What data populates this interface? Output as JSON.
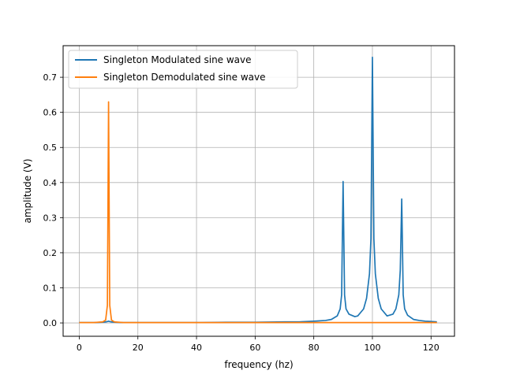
{
  "chart_data": {
    "type": "line",
    "title": "",
    "xlabel": "frequency (hz)",
    "ylabel": "amplitude (V)",
    "xlim": [
      -5.5,
      128
    ],
    "ylim": [
      -0.038,
      0.79
    ],
    "xticks": [
      0,
      20,
      40,
      60,
      80,
      100,
      120
    ],
    "yticks": [
      0.0,
      0.1,
      0.2,
      0.3,
      0.4,
      0.5,
      0.6,
      0.7
    ],
    "grid": true,
    "legend_position": "upper-left",
    "series": [
      {
        "name": "Singleton Modulated sine wave",
        "color": "#1f77b4",
        "x": [
          0,
          5,
          8,
          9,
          9.6,
          10,
          10.4,
          11,
          12,
          15,
          20,
          30,
          40,
          50,
          60,
          70,
          75,
          80,
          84,
          86,
          88,
          89,
          89.5,
          90,
          90.5,
          91,
          92,
          94,
          95,
          97,
          98,
          99,
          99.5,
          100,
          100.5,
          101,
          102,
          103,
          105,
          107,
          108,
          109,
          109.5,
          110,
          110.5,
          111,
          112,
          114,
          116,
          118,
          120,
          122
        ],
        "y": [
          0.001,
          0.001,
          0.002,
          0.003,
          0.004,
          0.005,
          0.004,
          0.003,
          0.002,
          0.001,
          0.001,
          0.001,
          0.001,
          0.002,
          0.002,
          0.003,
          0.003,
          0.005,
          0.007,
          0.01,
          0.02,
          0.04,
          0.08,
          0.403,
          0.08,
          0.04,
          0.025,
          0.018,
          0.02,
          0.04,
          0.07,
          0.14,
          0.24,
          0.757,
          0.24,
          0.14,
          0.07,
          0.04,
          0.02,
          0.025,
          0.04,
          0.08,
          0.15,
          0.353,
          0.08,
          0.04,
          0.022,
          0.01,
          0.007,
          0.005,
          0.004,
          0.003
        ]
      },
      {
        "name": "Singleton Demodulated sine wave",
        "color": "#ff7f0e",
        "x": [
          0,
          5,
          8,
          9,
          9.6,
          10,
          10.4,
          11,
          12,
          15,
          20,
          40,
          60,
          80,
          100,
          110,
          122
        ],
        "y": [
          0.001,
          0.001,
          0.003,
          0.008,
          0.05,
          0.63,
          0.05,
          0.008,
          0.003,
          0.001,
          0.001,
          0.001,
          0.001,
          0.001,
          0.001,
          0.001,
          0.001
        ]
      }
    ]
  }
}
